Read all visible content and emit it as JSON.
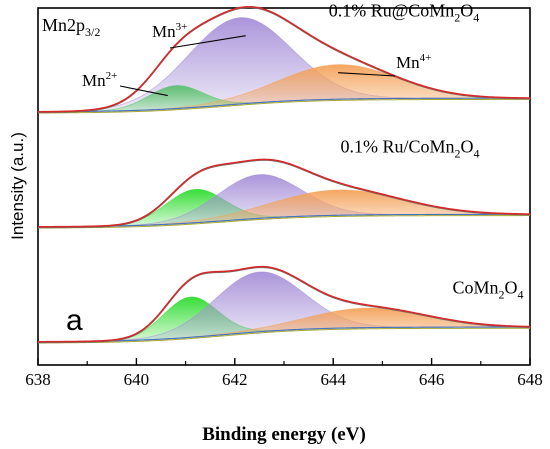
{
  "chart_data": {
    "type": "area",
    "xlabel": "Binding energy (eV)",
    "ylabel": "Intensity (a.u.)",
    "xlim": [
      638,
      648
    ],
    "x_ticks": [
      "638",
      "640",
      "642",
      "644",
      "646",
      "648"
    ],
    "panel_label": "a",
    "corner_label": {
      "base": "Mn2p",
      "sub": "3/2"
    },
    "colors": {
      "envelope": "#d42a2a",
      "mn2_fill": "#2edc2e",
      "mn3_fill": "#a690d8",
      "mn4_fill": "#f4a25a",
      "background": "#4472c4",
      "background2": "#a8a830",
      "fit_sum": "#707070"
    },
    "spectra": [
      {
        "label": {
          "pre": "0.1% Ru@CoMn",
          "sub1": "2",
          "mid": "O",
          "sub2": "4"
        },
        "offset": 2.0,
        "bg_low": 0.0,
        "bg_high": 0.12,
        "peaks": [
          {
            "species": "Mn2+",
            "center": 640.8,
            "sigma": 0.55,
            "height": 0.2
          },
          {
            "species": "Mn3+",
            "center": 642.1,
            "sigma": 1.05,
            "height": 0.75
          },
          {
            "species": "Mn4+",
            "center": 644.1,
            "sigma": 1.2,
            "height": 0.3
          }
        ]
      },
      {
        "label": {
          "pre": "0.1% Ru/CoMn",
          "sub1": "2",
          "mid": "O",
          "sub2": "4"
        },
        "offset": 1.0,
        "bg_low": 0.0,
        "bg_high": 0.11,
        "peaks": [
          {
            "species": "Mn2+",
            "center": 641.2,
            "sigma": 0.6,
            "height": 0.29
          },
          {
            "species": "Mn3+",
            "center": 642.5,
            "sigma": 0.85,
            "height": 0.38
          },
          {
            "species": "Mn4+",
            "center": 644.1,
            "sigma": 1.3,
            "height": 0.22
          }
        ]
      },
      {
        "label": {
          "pre": "CoMn",
          "sub1": "2",
          "mid": "O",
          "sub2": "4"
        },
        "offset": 0.0,
        "bg_low": 0.0,
        "bg_high": 0.13,
        "peaks": [
          {
            "species": "Mn2+",
            "center": 641.1,
            "sigma": 0.55,
            "height": 0.35
          },
          {
            "species": "Mn3+",
            "center": 642.5,
            "sigma": 0.9,
            "height": 0.52
          },
          {
            "species": "Mn4+",
            "center": 644.7,
            "sigma": 1.2,
            "height": 0.17
          }
        ]
      }
    ],
    "annotations": [
      {
        "text": "Mn",
        "sup": "2+",
        "target": "Mn2+",
        "spectrum": 0
      },
      {
        "text": "Mn",
        "sup": "3+",
        "target": "Mn3+",
        "spectrum": 0
      },
      {
        "text": "Mn",
        "sup": "4+",
        "target": "Mn4+",
        "spectrum": 0
      }
    ]
  }
}
